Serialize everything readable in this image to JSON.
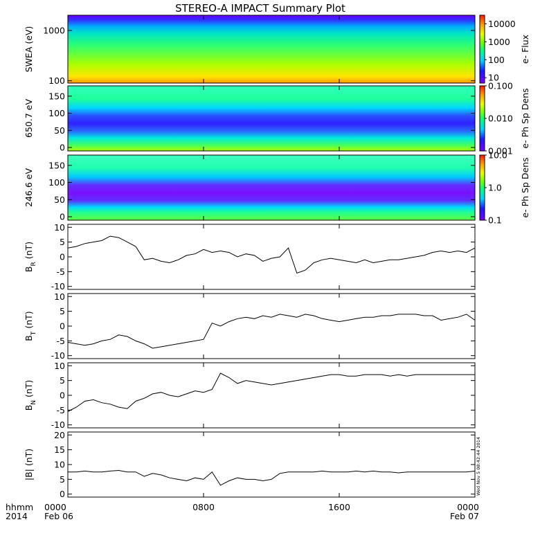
{
  "title": "STEREO-A IMPACT Summary Plot",
  "stamp": "Wed Nov 5 08:42:44 2014",
  "x_axis": {
    "row1_prefix": "hhmm",
    "row2_prefix": "2014",
    "ticks": [
      {
        "hour": 0,
        "label": "0000",
        "date": "Feb 06"
      },
      {
        "hour": 8,
        "label": "0800",
        "date": ""
      },
      {
        "hour": 16,
        "label": "1600",
        "date": ""
      },
      {
        "hour": 24,
        "label": "0000",
        "date": "Feb 07"
      }
    ],
    "range_hours": [
      0,
      24
    ]
  },
  "chart_data": [
    {
      "type": "heatmap",
      "ylabel": "SWEA (eV)",
      "y_scale": "log",
      "ylim": [
        90,
        2000
      ],
      "yticks": [
        {
          "v": 100,
          "label": "100"
        },
        {
          "v": 1000,
          "label": "1000"
        }
      ],
      "colorbar_label": "e- Flux",
      "colorbar_scale": "log",
      "colorbar_range": [
        5,
        30000
      ],
      "colorbar_ticks": [
        {
          "v": 10,
          "label": "10"
        },
        {
          "v": 100,
          "label": "100"
        },
        {
          "v": 1000,
          "label": "1000"
        },
        {
          "v": 10000,
          "label": "10000"
        }
      ]
    },
    {
      "type": "heatmap",
      "ylabel": "650.7 eV",
      "y_scale": "linear",
      "ylim": [
        -10,
        180
      ],
      "yticks": [
        {
          "v": 0,
          "label": "0"
        },
        {
          "v": 50,
          "label": "50"
        },
        {
          "v": 100,
          "label": "100"
        },
        {
          "v": 150,
          "label": "150"
        }
      ],
      "colorbar_label": "e- Ph Sp Dens",
      "colorbar_scale": "log",
      "colorbar_range": [
        0.001,
        0.1
      ],
      "colorbar_ticks": [
        {
          "v": 0.001,
          "label": "0.001"
        },
        {
          "v": 0.01,
          "label": "0.010"
        },
        {
          "v": 0.1,
          "label": "0.100"
        }
      ]
    },
    {
      "type": "heatmap",
      "ylabel": "246.6 eV",
      "y_scale": "linear",
      "ylim": [
        -10,
        180
      ],
      "yticks": [
        {
          "v": 0,
          "label": "0"
        },
        {
          "v": 50,
          "label": "50"
        },
        {
          "v": 100,
          "label": "100"
        },
        {
          "v": 150,
          "label": "150"
        }
      ],
      "colorbar_label": "e- Ph Sp Dens",
      "colorbar_scale": "log",
      "colorbar_range": [
        0.1,
        10
      ],
      "colorbar_ticks": [
        {
          "v": 0.1,
          "label": "0.1"
        },
        {
          "v": 1,
          "label": "1.0"
        },
        {
          "v": 10,
          "label": "10.0"
        }
      ]
    },
    {
      "type": "line",
      "ylabel": "B",
      "ylabel_sub": "R",
      "ylabel_unit": "(nT)",
      "ylim": [
        -11,
        11
      ],
      "yticks": [
        {
          "v": -10,
          "label": "-10"
        },
        {
          "v": -5,
          "label": "-5"
        },
        {
          "v": 0,
          "label": "0"
        },
        {
          "v": 5,
          "label": "5"
        },
        {
          "v": 10,
          "label": "10"
        }
      ],
      "x": [
        0,
        0.5,
        1,
        1.5,
        2,
        2.5,
        3,
        3.5,
        4,
        4.5,
        5,
        5.5,
        6,
        6.5,
        7,
        7.5,
        8,
        8.5,
        9,
        9.5,
        10,
        10.5,
        11,
        11.5,
        12,
        12.5,
        13,
        13.5,
        14,
        14.5,
        15,
        15.5,
        16,
        16.5,
        17,
        17.5,
        18,
        18.5,
        19,
        19.5,
        20,
        20.5,
        21,
        21.5,
        22,
        22.5,
        23,
        23.5,
        24
      ],
      "y": [
        3,
        3.5,
        4.5,
        5,
        5.5,
        7,
        6.5,
        5,
        3.5,
        -1,
        -0.5,
        -1.5,
        -2,
        -1,
        0.5,
        1,
        2.5,
        1.5,
        2,
        1.5,
        0,
        1,
        0.5,
        -1.5,
        -0.5,
        0,
        3,
        -5.5,
        -4.5,
        -2,
        -1,
        -0.5,
        -1,
        -1.5,
        -2,
        -1,
        -2,
        -1.5,
        -1,
        -1,
        -0.5,
        0,
        0.5,
        1.5,
        2,
        1.5,
        2,
        1.5,
        3
      ]
    },
    {
      "type": "line",
      "ylabel": "B",
      "ylabel_sub": "T",
      "ylabel_unit": "(nT)",
      "ylim": [
        -11,
        11
      ],
      "yticks": [
        {
          "v": -10,
          "label": "-10"
        },
        {
          "v": -5,
          "label": "-5"
        },
        {
          "v": 0,
          "label": "0"
        },
        {
          "v": 5,
          "label": "5"
        },
        {
          "v": 10,
          "label": "10"
        }
      ],
      "x": [
        0,
        0.5,
        1,
        1.5,
        2,
        2.5,
        3,
        3.5,
        4,
        4.5,
        5,
        5.5,
        6,
        6.5,
        7,
        7.5,
        8,
        8.5,
        9,
        9.5,
        10,
        10.5,
        11,
        11.5,
        12,
        12.5,
        13,
        13.5,
        14,
        14.5,
        15,
        15.5,
        16,
        16.5,
        17,
        17.5,
        18,
        18.5,
        19,
        19.5,
        20,
        20.5,
        21,
        21.5,
        22,
        22.5,
        23,
        23.5,
        24
      ],
      "y": [
        -5.5,
        -6,
        -6.5,
        -6,
        -5,
        -4.5,
        -3,
        -3.5,
        -5,
        -6,
        -7.5,
        -7,
        -6.5,
        -6,
        -5.5,
        -5,
        -4.5,
        1,
        0,
        1.5,
        2.5,
        3,
        2.5,
        3.5,
        3,
        4,
        3.5,
        3,
        4,
        3.5,
        2.5,
        2,
        1.5,
        2,
        2.5,
        3,
        3,
        3.5,
        3.5,
        4,
        4,
        4,
        3.5,
        3.5,
        2,
        2.5,
        3,
        4,
        2
      ]
    },
    {
      "type": "line",
      "ylabel": "B",
      "ylabel_sub": "N",
      "ylabel_unit": "(nT)",
      "ylim": [
        -11,
        11
      ],
      "yticks": [
        {
          "v": -10,
          "label": "-10"
        },
        {
          "v": -5,
          "label": "-5"
        },
        {
          "v": 0,
          "label": "0"
        },
        {
          "v": 5,
          "label": "5"
        },
        {
          "v": 10,
          "label": "10"
        }
      ],
      "x": [
        0,
        0.5,
        1,
        1.5,
        2,
        2.5,
        3,
        3.5,
        4,
        4.5,
        5,
        5.5,
        6,
        6.5,
        7,
        7.5,
        8,
        8.5,
        9,
        9.5,
        10,
        10.5,
        11,
        11.5,
        12,
        12.5,
        13,
        13.5,
        14,
        14.5,
        15,
        15.5,
        16,
        16.5,
        17,
        17.5,
        18,
        18.5,
        19,
        19.5,
        20,
        20.5,
        21,
        21.5,
        22,
        22.5,
        23,
        23.5,
        24
      ],
      "y": [
        -5.5,
        -4,
        -2,
        -1.5,
        -2.5,
        -3,
        -4,
        -4.5,
        -2,
        -1,
        0.5,
        1,
        0,
        -0.5,
        0.5,
        1.5,
        1,
        2,
        7.5,
        6,
        4,
        5,
        4.5,
        4,
        3.5,
        4,
        4.5,
        5,
        5.5,
        6,
        6.5,
        7,
        7,
        6.5,
        6.5,
        7,
        7,
        7,
        6.5,
        7,
        6.5,
        7,
        7,
        7,
        7,
        7,
        7,
        7,
        7
      ]
    },
    {
      "type": "line",
      "ylabel": "|B|",
      "ylabel_unit": "(nT)",
      "ylim": [
        -1,
        21
      ],
      "yticks": [
        {
          "v": 0,
          "label": "0"
        },
        {
          "v": 5,
          "label": "5"
        },
        {
          "v": 10,
          "label": "10"
        },
        {
          "v": 15,
          "label": "15"
        },
        {
          "v": 20,
          "label": "20"
        }
      ],
      "x": [
        0,
        0.5,
        1,
        1.5,
        2,
        2.5,
        3,
        3.5,
        4,
        4.5,
        5,
        5.5,
        6,
        6.5,
        7,
        7.5,
        8,
        8.5,
        9,
        9.5,
        10,
        10.5,
        11,
        11.5,
        12,
        12.5,
        13,
        13.5,
        14,
        14.5,
        15,
        15.5,
        16,
        16.5,
        17,
        17.5,
        18,
        18.5,
        19,
        19.5,
        20,
        20.5,
        21,
        21.5,
        22,
        22.5,
        23,
        23.5,
        24
      ],
      "y": [
        7.5,
        7.5,
        7.8,
        7.5,
        7.5,
        7.8,
        8,
        7.5,
        7.5,
        6,
        7,
        6.5,
        5.5,
        5,
        4.5,
        5.5,
        5,
        7.5,
        3,
        4.5,
        5.5,
        5,
        5,
        4.5,
        5,
        7,
        7.5,
        7.5,
        7.5,
        7.5,
        7.8,
        7.5,
        7.5,
        7.5,
        7.8,
        7.5,
        7.8,
        7.5,
        7.5,
        7.2,
        7.5,
        7.5,
        7.5,
        7.5,
        7.5,
        7.5,
        7.5,
        7.5,
        7.8
      ]
    }
  ]
}
